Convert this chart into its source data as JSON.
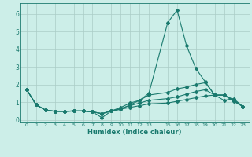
{
  "xlabel": "Humidex (Indice chaleur)",
  "x": [
    0,
    1,
    2,
    3,
    4,
    5,
    6,
    7,
    8,
    9,
    10,
    11,
    12,
    13,
    15,
    16,
    17,
    18,
    19,
    20,
    21,
    22,
    23
  ],
  "lines": [
    [
      1.7,
      0.85,
      0.55,
      0.48,
      0.48,
      0.5,
      0.5,
      0.45,
      0.12,
      0.5,
      0.6,
      0.85,
      1.1,
      1.5,
      5.5,
      6.2,
      4.2,
      2.9,
      2.15,
      1.4,
      1.1,
      1.2,
      0.75
    ],
    [
      1.7,
      0.85,
      0.55,
      0.48,
      0.48,
      0.5,
      0.5,
      0.45,
      0.35,
      0.5,
      0.7,
      0.95,
      1.1,
      1.4,
      1.55,
      1.75,
      1.85,
      2.0,
      2.1,
      1.4,
      1.4,
      1.15,
      0.75
    ],
    [
      1.7,
      0.85,
      0.55,
      0.48,
      0.48,
      0.5,
      0.5,
      0.45,
      0.35,
      0.5,
      0.65,
      0.8,
      0.95,
      1.1,
      1.2,
      1.3,
      1.45,
      1.6,
      1.7,
      1.4,
      1.4,
      1.1,
      0.75
    ],
    [
      1.7,
      0.85,
      0.55,
      0.48,
      0.48,
      0.5,
      0.5,
      0.45,
      0.35,
      0.5,
      0.6,
      0.7,
      0.8,
      0.9,
      0.95,
      1.05,
      1.15,
      1.25,
      1.35,
      1.4,
      1.4,
      1.05,
      0.75
    ]
  ],
  "line_color": "#1a7a6e",
  "bg_color": "#cceee8",
  "grid_color": "#aaccc6",
  "ylim": [
    -0.15,
    6.6
  ],
  "xlim": [
    -0.7,
    23.7
  ],
  "yticks": [
    0,
    1,
    2,
    3,
    4,
    5,
    6
  ],
  "xticks": [
    0,
    1,
    2,
    3,
    4,
    5,
    6,
    7,
    8,
    9,
    10,
    11,
    12,
    13,
    15,
    16,
    17,
    18,
    19,
    20,
    21,
    22,
    23
  ],
  "figsize": [
    3.2,
    2.0
  ],
  "dpi": 100
}
